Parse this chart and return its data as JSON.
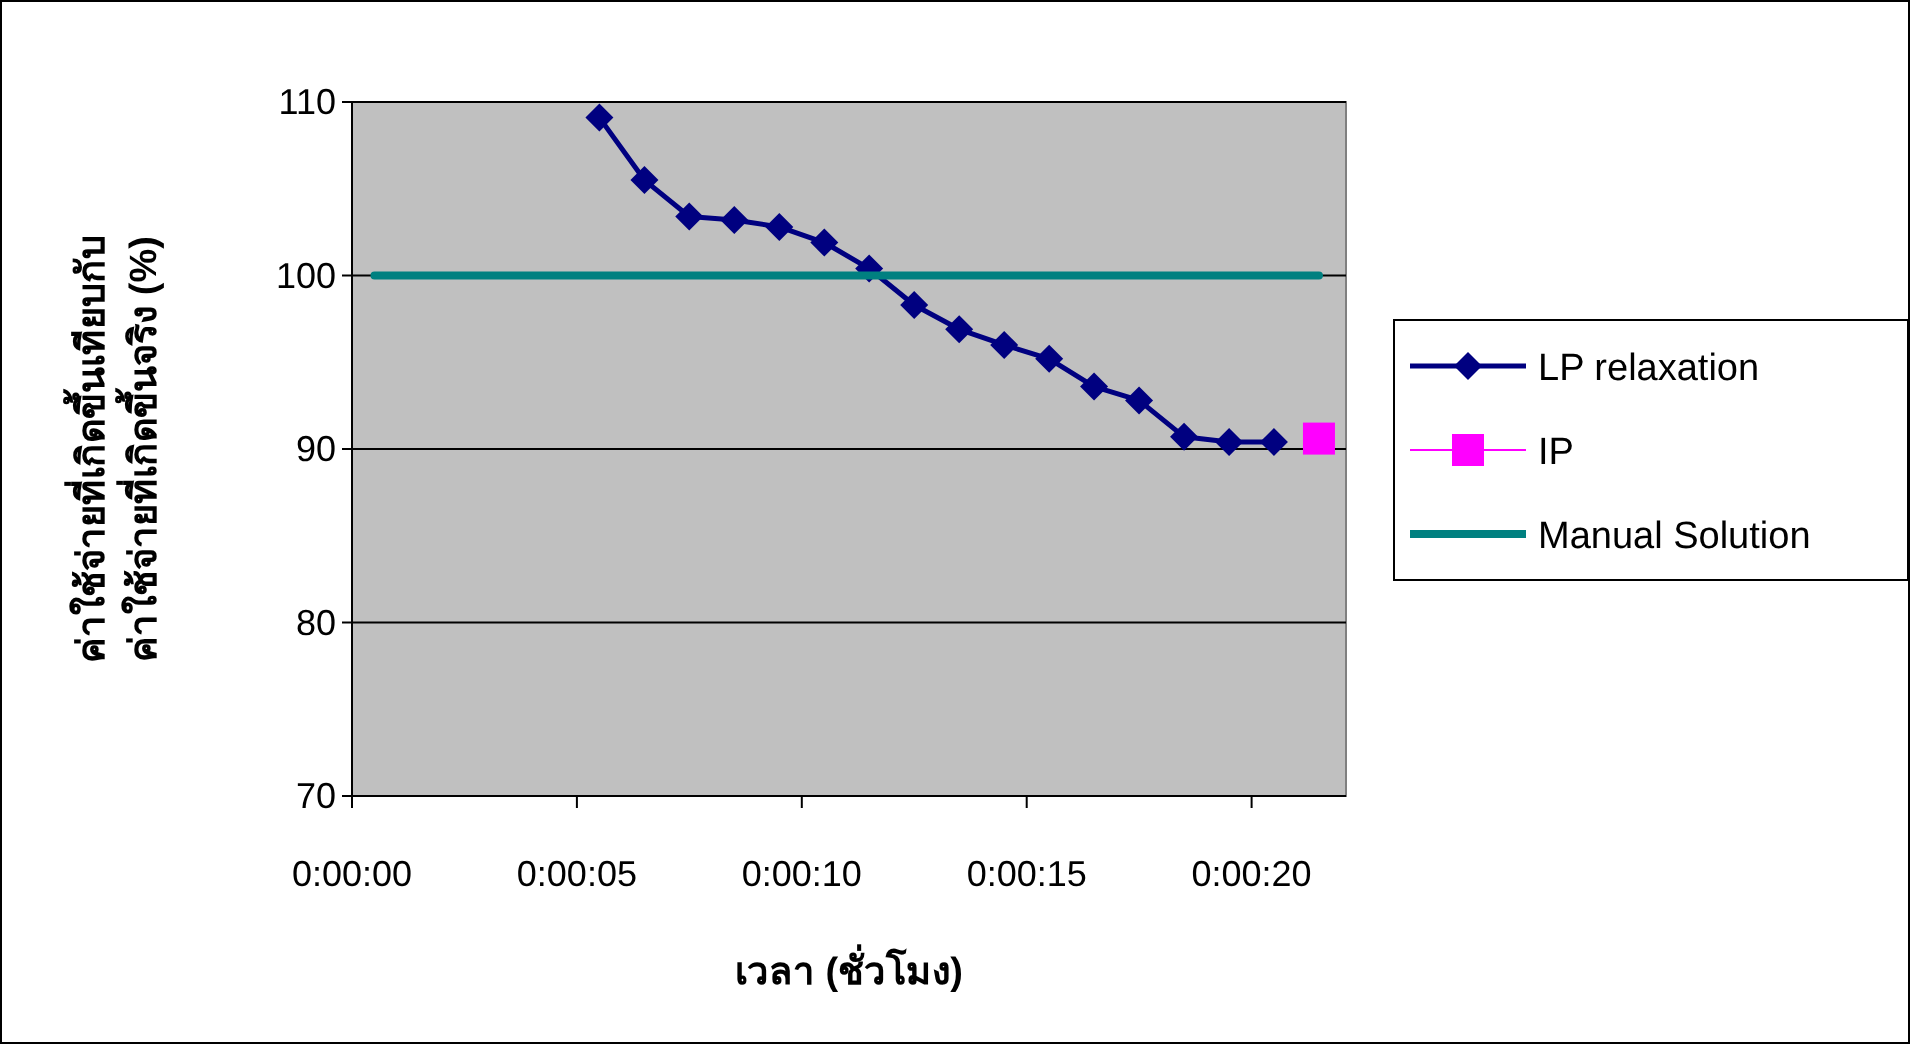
{
  "chart_data": {
    "type": "line",
    "xlabel": "เวลา (ชั่วโมง)",
    "ylabel": "ค่าใช้จ่ายที่เกิดขึ้นเทียบกับ\nค่าใช้จ่ายที่เกิดขึ้นจริง (%)",
    "series": [
      {
        "name": "LP relaxation",
        "color": "#000080",
        "marker": "diamond",
        "x": [
          0.001528,
          0.001806,
          0.002083,
          0.002361,
          0.002639,
          0.002917,
          0.003194,
          0.003472,
          0.00375,
          0.004028,
          0.004306,
          0.004583,
          0.004861,
          0.005139,
          0.005417,
          0.005694
        ],
        "values": [
          109.1,
          105.5,
          103.4,
          103.2,
          102.8,
          101.9,
          100.4,
          98.3,
          96.9,
          96.0,
          95.2,
          93.6,
          92.8,
          90.7,
          90.4,
          90.4
        ]
      },
      {
        "name": "IP",
        "color": "#ff00ff",
        "marker": "square",
        "x": [
          0.005972
        ],
        "values": [
          90.6
        ]
      },
      {
        "name": "Manual Solution",
        "color": "#008080",
        "marker": "none",
        "x": [
          0.000139,
          0.005972
        ],
        "values": [
          100,
          100
        ]
      }
    ],
    "xlim": [
      0,
      0.006139
    ],
    "xticks": [
      {
        "value": 0,
        "label": "0:00:00"
      },
      {
        "value": 0.001389,
        "label": "0:00:05"
      },
      {
        "value": 0.002778,
        "label": "0:00:10"
      },
      {
        "value": 0.004167,
        "label": "0:00:15"
      },
      {
        "value": 0.005556,
        "label": "0:00:20"
      }
    ],
    "ylim": [
      70,
      110
    ],
    "yticks": [
      70,
      80,
      90,
      100,
      110
    ],
    "grid": "y",
    "legend": "right"
  }
}
